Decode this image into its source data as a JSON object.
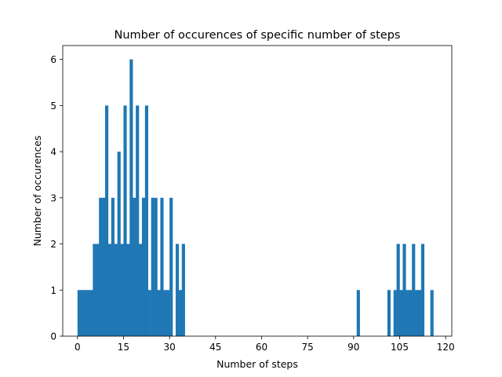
{
  "chart_data": {
    "type": "bar",
    "title": "Number of occurences of specific number of steps",
    "xlabel": "Number of steps",
    "ylabel": "Number of occurences",
    "xlim": [
      -4.8,
      122.0
    ],
    "ylim": [
      0,
      6.3
    ],
    "xticks": [
      0,
      15,
      30,
      45,
      60,
      75,
      90,
      105,
      120
    ],
    "yticks": [
      0,
      1,
      2,
      3,
      4,
      5,
      6
    ],
    "bin_width": 1,
    "bar_color": "#1f77b4",
    "grid": false,
    "bins": [
      {
        "x": 0,
        "value": 1
      },
      {
        "x": 1,
        "value": 1
      },
      {
        "x": 2,
        "value": 1
      },
      {
        "x": 3,
        "value": 1
      },
      {
        "x": 4,
        "value": 1
      },
      {
        "x": 5,
        "value": 2
      },
      {
        "x": 6,
        "value": 2
      },
      {
        "x": 7,
        "value": 3
      },
      {
        "x": 8,
        "value": 3
      },
      {
        "x": 9,
        "value": 5
      },
      {
        "x": 10,
        "value": 2
      },
      {
        "x": 11,
        "value": 3
      },
      {
        "x": 12,
        "value": 2
      },
      {
        "x": 13,
        "value": 4
      },
      {
        "x": 14,
        "value": 2
      },
      {
        "x": 15,
        "value": 5
      },
      {
        "x": 16,
        "value": 2
      },
      {
        "x": 17,
        "value": 6
      },
      {
        "x": 18,
        "value": 3
      },
      {
        "x": 19,
        "value": 5
      },
      {
        "x": 20,
        "value": 2
      },
      {
        "x": 21,
        "value": 3
      },
      {
        "x": 22,
        "value": 5
      },
      {
        "x": 23,
        "value": 1
      },
      {
        "x": 24,
        "value": 3
      },
      {
        "x": 25,
        "value": 3
      },
      {
        "x": 26,
        "value": 1
      },
      {
        "x": 27,
        "value": 3
      },
      {
        "x": 28,
        "value": 1
      },
      {
        "x": 29,
        "value": 1
      },
      {
        "x": 30,
        "value": 3
      },
      {
        "x": 32,
        "value": 2
      },
      {
        "x": 33,
        "value": 1
      },
      {
        "x": 34,
        "value": 2
      },
      {
        "x": 91,
        "value": 1
      },
      {
        "x": 101,
        "value": 1
      },
      {
        "x": 103,
        "value": 1
      },
      {
        "x": 104,
        "value": 2
      },
      {
        "x": 105,
        "value": 1
      },
      {
        "x": 106,
        "value": 2
      },
      {
        "x": 107,
        "value": 1
      },
      {
        "x": 108,
        "value": 1
      },
      {
        "x": 109,
        "value": 2
      },
      {
        "x": 110,
        "value": 1
      },
      {
        "x": 111,
        "value": 1
      },
      {
        "x": 112,
        "value": 2
      },
      {
        "x": 115,
        "value": 1
      }
    ]
  }
}
